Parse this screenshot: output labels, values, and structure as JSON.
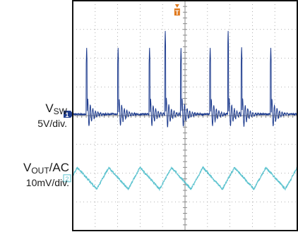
{
  "chart_data": {
    "type": "line",
    "title": "",
    "xlabel": "",
    "ylabel": "",
    "grid": true,
    "divisions": {
      "x": 10,
      "y": 8
    },
    "trigger_marker": "T",
    "series": [
      {
        "name": "VSW",
        "channel_marker": "1",
        "scale": "5V/div.",
        "color": "#1f3d8f",
        "baseline_div": 4.05,
        "ringing_after_edge_div": 0.6,
        "spike_peak_div": 6.4,
        "spikes_at_div": [
          0.6,
          2.0,
          3.4,
          4.8,
          6.1,
          7.5,
          8.8
        ],
        "tall_spike_peak_div": 7.0,
        "tall_spikes_at_div": [
          4.1,
          6.9
        ]
      },
      {
        "name": "VOUT/AC",
        "channel_marker": "2",
        "scale": "10mV/div.",
        "color": "#5cc3cf",
        "center_div": 1.82,
        "peak_to_peak_div": 0.75,
        "period_div": 1.4,
        "first_peak_div": 0.2
      }
    ]
  },
  "labels": {
    "vsw": {
      "main": "V",
      "sub": "SW",
      "scale": "5V/div."
    },
    "vout": {
      "main": "V",
      "sub": "OUT",
      "suffix": "/AC",
      "scale": "10mV/div."
    }
  }
}
